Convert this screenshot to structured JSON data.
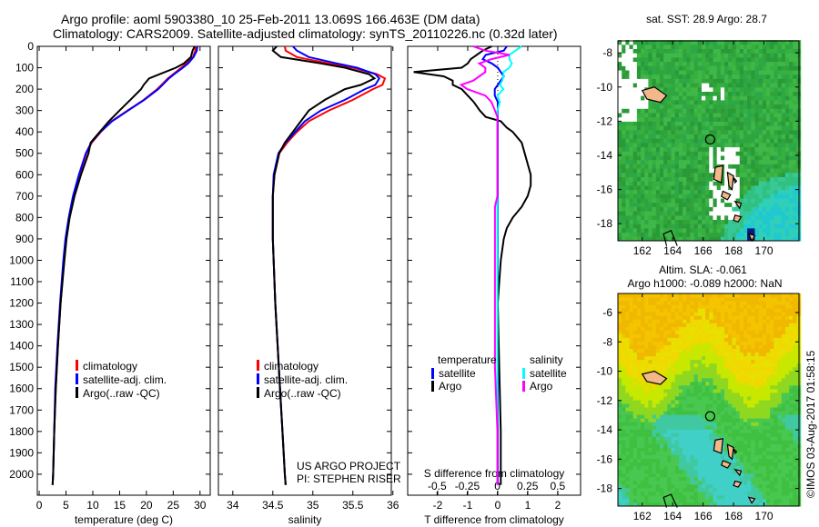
{
  "title": {
    "line1": "Argo profile: aoml 5903380_10 25-Feb-2011 13.069S 166.463E (DM data)",
    "line2": "Climatology: CARS2009. Satellite-adjusted climatology: synTS_20110226.nc (0.32d later)"
  },
  "footer": {
    "credit": "©IMOS 03-Aug-2017 01:58:15"
  },
  "project": {
    "line1": "US ARGO PROJECT",
    "line2": "PI: STEPHEN RISER"
  },
  "colors": {
    "climatology": "#ff0000",
    "satellite": "#0000ff",
    "argo": "#000000",
    "sal_satellite": "#00ffff",
    "sal_argo": "#ff00ff"
  },
  "chart_data": [
    {
      "type": "line",
      "xlabel": "temperature (deg C)",
      "xlim": [
        -0.35,
        31.9
      ],
      "ylim": [
        0,
        2098
      ],
      "xticks": [
        0,
        5,
        10,
        15,
        20,
        25,
        30
      ],
      "yticks": [
        0,
        100,
        200,
        300,
        400,
        500,
        600,
        700,
        800,
        900,
        1000,
        1100,
        1200,
        1300,
        1400,
        1500,
        1600,
        1700,
        1800,
        1900,
        2000
      ],
      "legend": [
        "climatology",
        "satellite-adj. clim.",
        "Argo(..raw -QC)"
      ],
      "depth": [
        0,
        20,
        50,
        80,
        100,
        130,
        150,
        180,
        200,
        250,
        300,
        350,
        400,
        450,
        500,
        600,
        700,
        800,
        900,
        1000,
        1200,
        1400,
        1600,
        1800,
        2000,
        2050
      ],
      "series": [
        {
          "name": "climatology",
          "color": "#ff0000",
          "values": [
            29.2,
            29.1,
            28.7,
            27.5,
            26.5,
            25,
            24,
            22.8,
            22,
            19.5,
            16.5,
            13.5,
            11.5,
            9.8,
            8.8,
            7.5,
            6.4,
            5.6,
            5.0,
            4.6,
            4.0,
            3.5,
            3.1,
            2.8,
            2.6,
            2.5
          ]
        },
        {
          "name": "satellite-adj. clim.",
          "color": "#0000ff",
          "values": [
            29.5,
            29.4,
            28.8,
            27.8,
            26.8,
            25.2,
            24.2,
            23,
            22.2,
            19.6,
            16.6,
            13.6,
            11.4,
            9.7,
            8.7,
            7.4,
            6.3,
            5.5,
            4.9,
            4.5,
            3.9,
            3.4,
            3.0,
            2.8,
            2.6,
            2.5
          ]
        },
        {
          "name": "Argo(..raw -QC)",
          "color": "#000000",
          "values": [
            29,
            28.6,
            28.3,
            27,
            25.5,
            22.5,
            20.5,
            19.5,
            19,
            17,
            15,
            13,
            11.3,
            9.6,
            9.2,
            7.8,
            6.6,
            5.7,
            5.1,
            4.7,
            4.0,
            3.5,
            3.1,
            2.8,
            2.6,
            2.5
          ]
        }
      ]
    },
    {
      "type": "line",
      "xlabel": "salinity",
      "xlim": [
        33.82,
        35.98
      ],
      "ylim": [
        0,
        2098
      ],
      "xticks": [
        34,
        34.5,
        35,
        35.5,
        36
      ],
      "legend": [
        "climatology",
        "satellite-adj. clim.",
        "Argo(..raw -QC)"
      ],
      "depth": [
        0,
        20,
        50,
        80,
        100,
        130,
        150,
        180,
        200,
        250,
        300,
        350,
        400,
        450,
        500,
        600,
        700,
        800,
        900,
        1000,
        1200,
        1400,
        1600,
        1800,
        2000,
        2050
      ],
      "series": [
        {
          "name": "climatology",
          "color": "#ff0000",
          "values": [
            34.65,
            34.66,
            34.8,
            35.2,
            35.5,
            35.8,
            35.9,
            35.87,
            35.75,
            35.5,
            35.2,
            34.95,
            34.8,
            34.68,
            34.58,
            34.52,
            34.5,
            34.5,
            34.5,
            34.51,
            34.53,
            34.56,
            34.59,
            34.62,
            34.65,
            34.66
          ]
        },
        {
          "name": "satellite-adj. clim.",
          "color": "#0000ff",
          "values": [
            34.75,
            34.8,
            34.95,
            35.3,
            35.55,
            35.78,
            35.83,
            35.78,
            35.65,
            35.4,
            35.1,
            34.9,
            34.78,
            34.66,
            34.57,
            34.51,
            34.5,
            34.5,
            34.5,
            34.51,
            34.53,
            34.56,
            34.59,
            34.62,
            34.65,
            34.66
          ]
        },
        {
          "name": "Argo(..raw -QC)",
          "color": "#000000",
          "values": [
            34.55,
            34.5,
            34.6,
            35.1,
            35.4,
            35.7,
            35.77,
            35.6,
            35.4,
            35.15,
            34.95,
            34.85,
            34.75,
            34.65,
            34.58,
            34.52,
            34.5,
            34.5,
            34.5,
            34.51,
            34.53,
            34.56,
            34.59,
            34.62,
            34.65,
            34.66
          ]
        }
      ]
    },
    {
      "type": "line",
      "xlabel": "T difference from climatology",
      "x2label": "S difference from climatology",
      "xlim": [
        -3.0,
        2.76
      ],
      "x2lim": [
        -0.744,
        0.69
      ],
      "ylim": [
        0,
        2098
      ],
      "xticks": [
        -2,
        -1,
        0,
        1,
        2
      ],
      "x2ticks": [
        -0.5,
        -0.25,
        0,
        0.25,
        0.5
      ],
      "legend_temperature": {
        "title": "temperature",
        "items": [
          "satellite",
          "Argo"
        ]
      },
      "legend_salinity": {
        "title": "salinity",
        "items": [
          "satellite",
          "Argo"
        ]
      },
      "depth": [
        0,
        20,
        40,
        60,
        80,
        100,
        120,
        140,
        160,
        180,
        200,
        230,
        260,
        300,
        330,
        350,
        380,
        400,
        450,
        500,
        550,
        600,
        650,
        700,
        750,
        800,
        850,
        900,
        1000,
        1200,
        1500,
        1800,
        2050
      ],
      "series": [
        {
          "name": "T satellite",
          "axis": "T",
          "color": "#0000ff",
          "values": [
            0.3,
            0.2,
            -0.4,
            -0.5,
            -0.2,
            0,
            0.1,
            0.2,
            0.1,
            0,
            -0.1,
            -0.1,
            0,
            0,
            0,
            0,
            0,
            0,
            0,
            0,
            0,
            0,
            0,
            0,
            0,
            0,
            0,
            0,
            0,
            0,
            0,
            0,
            0
          ]
        },
        {
          "name": "T Argo",
          "axis": "T",
          "color": "#000000",
          "values": [
            -0.2,
            -0.5,
            -0.7,
            -0.9,
            -1,
            -1.2,
            -2.8,
            -1.8,
            -1.5,
            -1.5,
            -1.2,
            -1.0,
            -0.8,
            -0.6,
            -0.4,
            0.1,
            0.3,
            0.5,
            0.8,
            0.9,
            1.0,
            1.1,
            1.1,
            1.0,
            0.8,
            0.5,
            0.3,
            0.2,
            0.1,
            0,
            0.05,
            0.1,
            0.1
          ]
        },
        {
          "name": "S satellite",
          "axis": "S",
          "color": "#00ffff",
          "values": [
            0.2,
            0.15,
            0.1,
            0.1,
            0.12,
            0.1,
            0.05,
            0.05,
            0.04,
            0.02,
            0.05,
            0,
            0.02,
            0,
            0,
            0,
            0,
            0,
            0,
            0,
            0,
            0,
            0,
            0,
            0,
            0,
            0,
            0,
            0,
            0,
            0,
            0,
            0
          ]
        },
        {
          "name": "S Argo",
          "axis": "S",
          "color": "#ff00ff",
          "values": [
            -0.2,
            -0.1,
            0.1,
            -0.05,
            -0.15,
            -0.1,
            -0.1,
            -0.15,
            -0.2,
            -0.3,
            -0.25,
            -0.1,
            -0.05,
            -0.02,
            0,
            0,
            0,
            0,
            0,
            0,
            0,
            0,
            0,
            0,
            -0.02,
            -0.02,
            -0.02,
            -0.02,
            -0.02,
            -0.02,
            -0.02,
            0,
            0
          ]
        }
      ]
    },
    {
      "type": "heatmap",
      "title": "sat. SST: 28.9 Argo: 28.7",
      "lonlim": [
        160.4,
        172.3
      ],
      "latlim": [
        -19.0,
        -7.3
      ],
      "xticks": [
        162,
        164,
        166,
        168,
        170
      ],
      "yticks": [
        -8,
        -10,
        -12,
        -14,
        -16,
        -18
      ],
      "argo_position": [
        166.463,
        -13.069
      ]
    },
    {
      "type": "heatmap",
      "title": "Altim. SLA: -0.061",
      "subtitle": "Argo h1000: -0.089 h2000: NaN",
      "lonlim": [
        160.4,
        172.3
      ],
      "latlim": [
        -19.2,
        -4.7
      ],
      "xticks": [
        162,
        164,
        166,
        168,
        170
      ],
      "yticks": [
        -6,
        -8,
        -10,
        -12,
        -14,
        -16,
        -18
      ],
      "argo_position": [
        166.463,
        -13.069
      ]
    }
  ]
}
